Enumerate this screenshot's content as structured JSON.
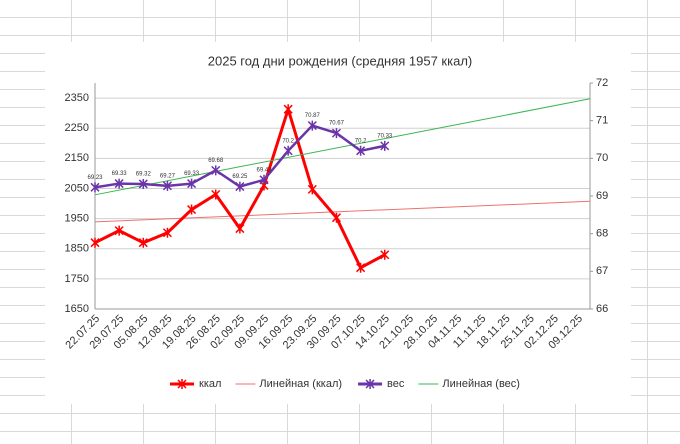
{
  "chart_data": {
    "type": "line",
    "title": "2025 год дни рождения (средняя 1957 ккал)",
    "categories": [
      "22.07.25",
      "29.07.25",
      "05.08.25",
      "12.08.25",
      "19.08.25",
      "26.08.25",
      "02.09.25",
      "09.09.25",
      "16.09.25",
      "23.09.25",
      "30.09.25",
      "07.10.25",
      "14.10.25",
      "21.10.25",
      "28.10.25",
      "04.11.25",
      "11.11.25",
      "18.11.25",
      "25.11.25",
      "02.12.25",
      "09.12.25"
    ],
    "series": [
      {
        "name": "ккал",
        "color": "#ff0000",
        "axis": "y",
        "values": [
          1870,
          1910,
          1870,
          1903,
          1980,
          2030,
          1917,
          2060,
          2313,
          2047,
          1953,
          1787,
          1830,
          null,
          null,
          null,
          null,
          null,
          null,
          null,
          null
        ],
        "trendline": {
          "name": "Линейная (ккал)",
          "color": "#f07070"
        }
      },
      {
        "name": "вес",
        "color": "#6a35a8",
        "axis": "y2",
        "show_value_labels": true,
        "values": [
          69.23,
          69.33,
          69.32,
          69.27,
          69.33,
          69.68,
          69.25,
          69.43,
          70.2,
          70.87,
          70.67,
          70.2,
          70.33,
          null,
          null,
          null,
          null,
          null,
          null,
          null,
          null
        ],
        "trendline": {
          "name": "Линейная (вес)",
          "color": "#3cb552"
        }
      }
    ],
    "ylim": [
      1650,
      2400
    ],
    "yticks": [
      1650,
      1750,
      1850,
      1950,
      2050,
      2150,
      2250,
      2350
    ],
    "y2lim": [
      66,
      72
    ],
    "y2ticks": [
      66,
      67,
      68,
      69,
      70,
      71,
      72
    ],
    "grid": true
  }
}
